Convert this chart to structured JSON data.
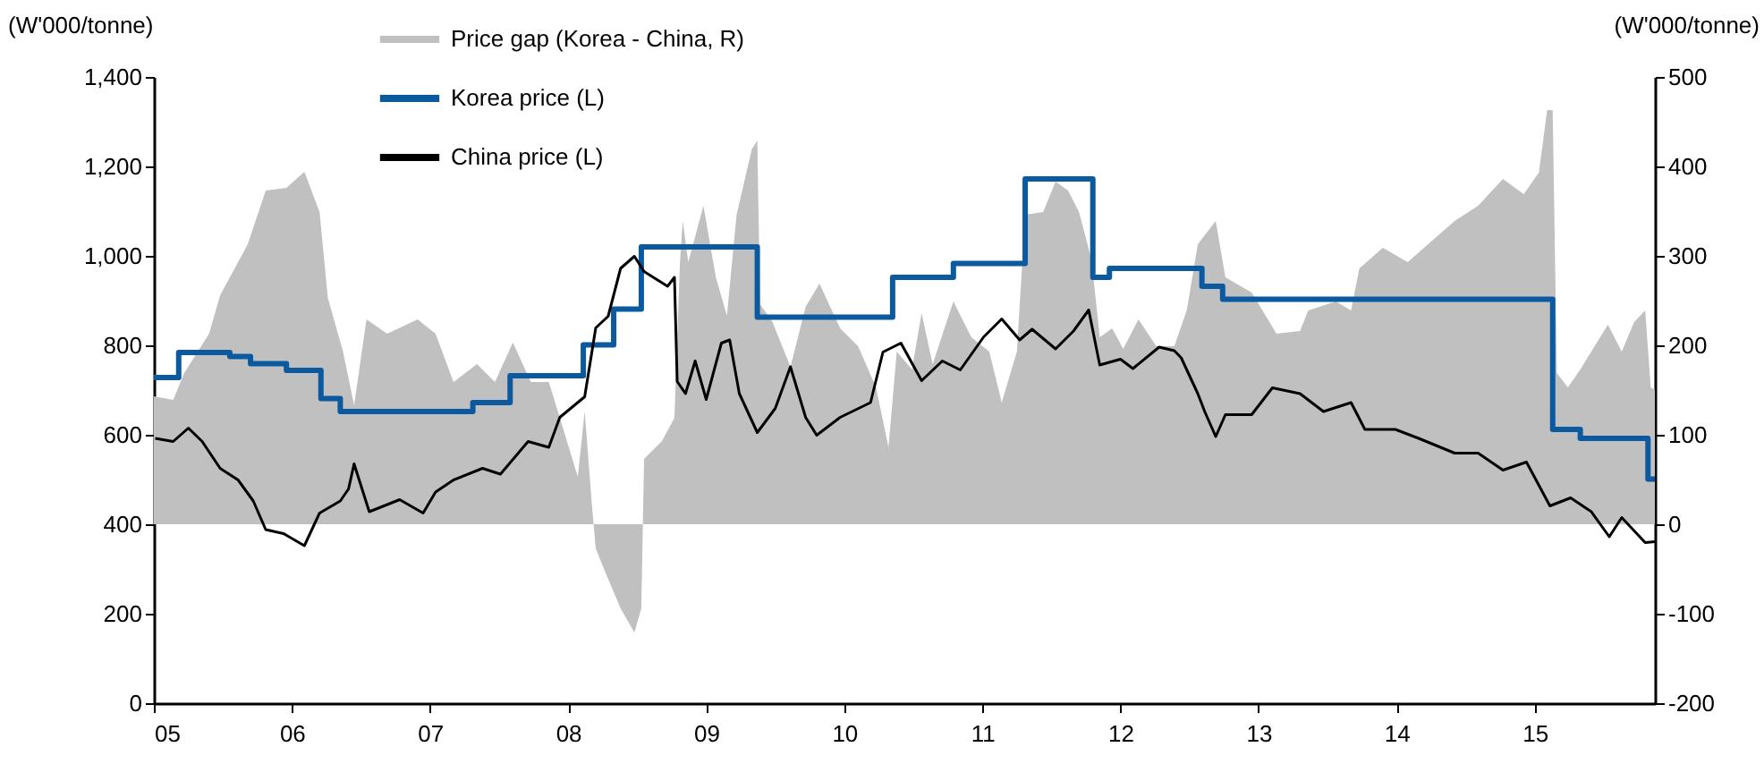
{
  "chart_data": {
    "type": "line",
    "ylabel": "(W'000/tonne)",
    "y2label": "(W'000/tonne)",
    "legend": "top left",
    "xlim": [
      2005,
      2015.87
    ],
    "xticks": [
      {
        "value": 2005,
        "label": "05"
      },
      {
        "value": 2006,
        "label": "06"
      },
      {
        "value": 2007,
        "label": "07"
      },
      {
        "value": 2008,
        "label": "08"
      },
      {
        "value": 2009,
        "label": "09"
      },
      {
        "value": 2010,
        "label": "10"
      },
      {
        "value": 2011,
        "label": "11"
      },
      {
        "value": 2012,
        "label": "12"
      },
      {
        "value": 2013,
        "label": "13"
      },
      {
        "value": 2014,
        "label": "14"
      },
      {
        "value": 2015,
        "label": "15"
      }
    ],
    "ylim": [
      0,
      1400
    ],
    "yticks": [
      0,
      200,
      400,
      600,
      800,
      {
        "value": 1000,
        "label": "1,000"
      },
      {
        "value": 1200,
        "label": "1,200"
      },
      {
        "value": 1400,
        "label": "1,400"
      }
    ],
    "y2lim": [
      -200,
      500
    ],
    "y2ticks": [
      -200,
      -100,
      0,
      100,
      200,
      300,
      400,
      500
    ],
    "series": [
      {
        "name": "Price gap (Korea - China, R)",
        "type": "area",
        "axis": "y2",
        "color": "#c0c0c0",
        "x": [
          2005.0,
          2005.14,
          2005.22,
          2005.4,
          2005.48,
          2005.68,
          2005.81,
          2005.96,
          2006.09,
          2006.2,
          2006.26,
          2006.37,
          2006.45,
          2006.54,
          2006.69,
          2006.91,
          2007.04,
          2007.17,
          2007.34,
          2007.47,
          2007.6,
          2007.73,
          2007.86,
          2007.94,
          2008.07,
          2008.12,
          2008.17,
          2008.2,
          2008.27,
          2008.38,
          2008.48,
          2008.53,
          2008.55,
          2008.68,
          2008.77,
          2008.81,
          2008.83,
          2008.87,
          2008.98,
          2009.07,
          2009.15,
          2009.22,
          2009.33,
          2009.37,
          2009.39,
          2009.48,
          2009.61,
          2009.72,
          2009.82,
          2009.97,
          2010.1,
          2010.23,
          2010.32,
          2010.38,
          2010.49,
          2010.56,
          2010.64,
          2010.79,
          2010.92,
          2011.05,
          2011.14,
          2011.25,
          2011.31,
          2011.44,
          2011.53,
          2011.62,
          2011.7,
          2011.79,
          2011.85,
          2011.94,
          2012.02,
          2012.13,
          2012.26,
          2012.39,
          2012.48,
          2012.56,
          2012.69,
          2012.76,
          2012.95,
          2013.13,
          2013.3,
          2013.36,
          2013.56,
          2013.67,
          2013.73,
          2013.9,
          2014.08,
          2014.25,
          2014.42,
          2014.59,
          2014.77,
          2014.92,
          2015.03,
          2015.09,
          2015.13,
          2015.16,
          2015.24,
          2015.33,
          2015.53,
          2015.63,
          2015.72,
          2015.8,
          2015.84,
          2015.87
        ],
        "values": [
          143,
          139,
          169,
          213,
          256,
          313,
          373,
          376,
          394,
          349,
          253,
          193,
          133,
          229,
          213,
          229,
          213,
          159,
          179,
          159,
          203,
          159,
          159,
          119,
          53,
          126,
          26,
          -27,
          -54,
          -94,
          -121,
          -94,
          73,
          93,
          119,
          293,
          339,
          293,
          356,
          276,
          233,
          346,
          419,
          429,
          246,
          226,
          176,
          243,
          269,
          219,
          199,
          153,
          86,
          193,
          173,
          236,
          179,
          249,
          209,
          193,
          136,
          193,
          346,
          349,
          383,
          373,
          349,
          296,
          209,
          219,
          196,
          229,
          199,
          199,
          239,
          313,
          339,
          276,
          259,
          213,
          216,
          239,
          249,
          239,
          286,
          309,
          293,
          316,
          339,
          356,
          386,
          369,
          393,
          463,
          463,
          169,
          153,
          173,
          223,
          193,
          226,
          239,
          153,
          150
        ]
      },
      {
        "name": "Korea price (L)",
        "type": "step",
        "color": "#0b5aa0",
        "x": [
          2005.0,
          2005.18,
          2005.55,
          2005.7,
          2005.96,
          2006.21,
          2006.35,
          2007.31,
          2007.58,
          2008.11,
          2008.33,
          2008.53,
          2009.37,
          2010.35,
          2010.79,
          2011.31,
          2011.8,
          2011.92,
          2012.59,
          2012.74,
          2015.13,
          2015.33,
          2015.82,
          2015.87
        ],
        "values": [
          728,
          784,
          775,
          759,
          744,
          681,
          652,
          672,
          732,
          801,
          881,
          1020,
          863,
          952,
          983,
          1172,
          952,
          972,
          932,
          903,
          612,
          592,
          501,
          501
        ]
      },
      {
        "name": "China price (L)",
        "color": "#000000",
        "x": [
          2005.01,
          2005.14,
          2005.25,
          2005.35,
          2005.48,
          2005.61,
          2005.72,
          2005.81,
          2005.94,
          2006.09,
          2006.2,
          2006.35,
          2006.41,
          2006.45,
          2006.56,
          2006.78,
          2006.95,
          2007.04,
          2007.17,
          2007.38,
          2007.51,
          2007.71,
          2007.86,
          2007.94,
          2008.12,
          2008.2,
          2008.29,
          2008.38,
          2008.48,
          2008.55,
          2008.72,
          2008.77,
          2008.79,
          2008.85,
          2008.92,
          2009.0,
          2009.11,
          2009.17,
          2009.24,
          2009.37,
          2009.5,
          2009.61,
          2009.72,
          2009.8,
          2009.97,
          2010.19,
          2010.28,
          2010.41,
          2010.56,
          2010.71,
          2010.84,
          2011.01,
          2011.14,
          2011.27,
          2011.36,
          2011.53,
          2011.66,
          2011.77,
          2011.85,
          2012.0,
          2012.09,
          2012.28,
          2012.39,
          2012.44,
          2012.56,
          2012.61,
          2012.69,
          2012.76,
          2012.95,
          2013.1,
          2013.3,
          2013.47,
          2013.67,
          2013.77,
          2013.99,
          2014.16,
          2014.42,
          2014.59,
          2014.77,
          2014.94,
          2015.11,
          2015.26,
          2015.41,
          2015.54,
          2015.63,
          2015.8,
          2015.87
        ],
        "values": [
          592,
          585,
          615,
          585,
          525,
          499,
          452,
          388,
          379,
          352,
          425,
          452,
          479,
          535,
          428,
          455,
          425,
          472,
          499,
          525,
          512,
          585,
          572,
          639,
          685,
          839,
          865,
          972,
          999,
          965,
          932,
          952,
          719,
          692,
          765,
          679,
          805,
          812,
          692,
          605,
          659,
          752,
          639,
          599,
          639,
          672,
          785,
          805,
          721,
          765,
          745,
          819,
          859,
          812,
          836,
          792,
          832,
          879,
          756,
          769,
          748,
          796,
          788,
          772,
          692,
          652,
          596,
          645,
          645,
          705,
          692,
          652,
          672,
          612,
          612,
          592,
          559,
          559,
          521,
          539,
          441,
          459,
          428,
          372,
          415,
          359,
          361
        ]
      }
    ]
  }
}
